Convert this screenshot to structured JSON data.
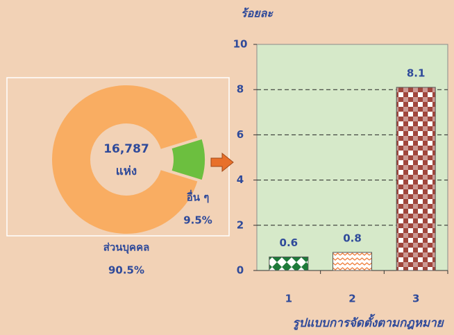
{
  "chart_data": [
    {
      "type": "pie",
      "hole": true,
      "center_text": [
        "16,787",
        "แห่ง"
      ],
      "categories": [
        "ส่วนบุคคล",
        "อื่น ๆ"
      ],
      "values": [
        90.5,
        9.5
      ],
      "value_labels": [
        "90.5%",
        "9.5%"
      ],
      "colors": [
        "#f9ad62",
        "#6cbf3f"
      ],
      "exploded": [
        false,
        true
      ]
    },
    {
      "type": "bar",
      "y_label": "ร้อยละ",
      "x_label": "รูปแบบการจัดตั้งตามกฎหมาย",
      "categories": [
        "1",
        "2",
        "3"
      ],
      "values": [
        0.6,
        0.8,
        8.1
      ],
      "colors": [
        "#1e7a3a",
        "#f07f3c",
        "#a0463c"
      ],
      "ylim": [
        0,
        10
      ],
      "yticks": [
        0,
        2,
        4,
        6,
        8,
        10
      ],
      "grid": true
    }
  ]
}
